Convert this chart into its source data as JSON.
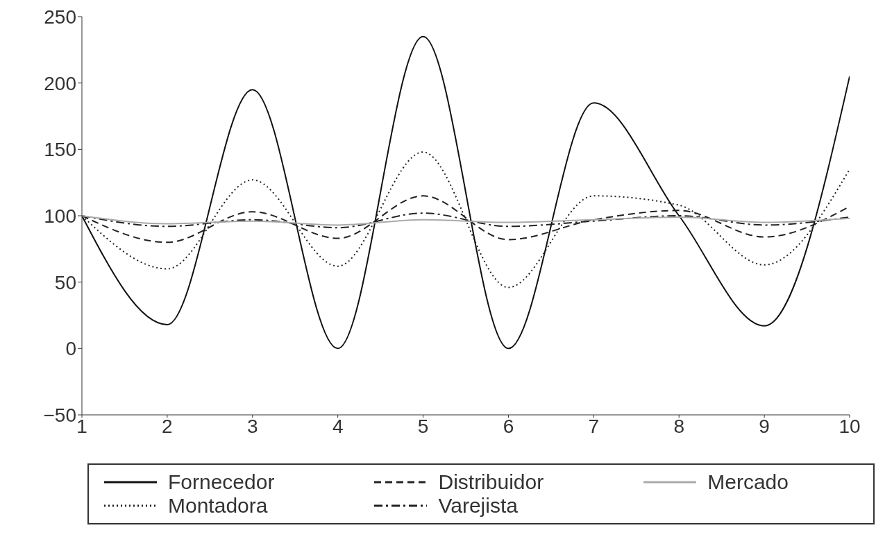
{
  "chart_data": {
    "type": "line",
    "x": [
      1,
      2,
      3,
      4,
      5,
      6,
      7,
      8,
      9,
      10
    ],
    "series": [
      {
        "name": "Fornecedor",
        "color": "#111111",
        "line_style": "solid",
        "values": [
          100,
          18,
          195,
          0,
          235,
          0,
          185,
          100,
          17,
          205
        ]
      },
      {
        "name": "Montadora",
        "color": "#222222",
        "line_style": "dotted",
        "values": [
          100,
          60,
          127,
          62,
          148,
          46,
          115,
          108,
          63,
          135
        ]
      },
      {
        "name": "Distribuidor",
        "color": "#222222",
        "line_style": "dashed",
        "values": [
          100,
          80,
          103,
          83,
          115,
          82,
          97,
          104,
          84,
          107
        ]
      },
      {
        "name": "Varejista",
        "color": "#222222",
        "line_style": "dashdot",
        "values": [
          100,
          92,
          97,
          91,
          102,
          92,
          96,
          100,
          93,
          99
        ]
      },
      {
        "name": "Mercado",
        "color": "#aaaaaa",
        "line_style": "solid",
        "values": [
          100,
          94,
          96,
          93,
          97,
          95,
          97,
          99,
          95,
          98
        ]
      }
    ],
    "xlim": [
      1,
      10
    ],
    "xticks": [
      1,
      2,
      3,
      4,
      5,
      6,
      7,
      8,
      9,
      10
    ],
    "ylim": [
      -50,
      250
    ],
    "yticks": [
      -50,
      0,
      50,
      100,
      150,
      200,
      250
    ],
    "grid": false,
    "legend": "bottom",
    "marker": "none"
  }
}
